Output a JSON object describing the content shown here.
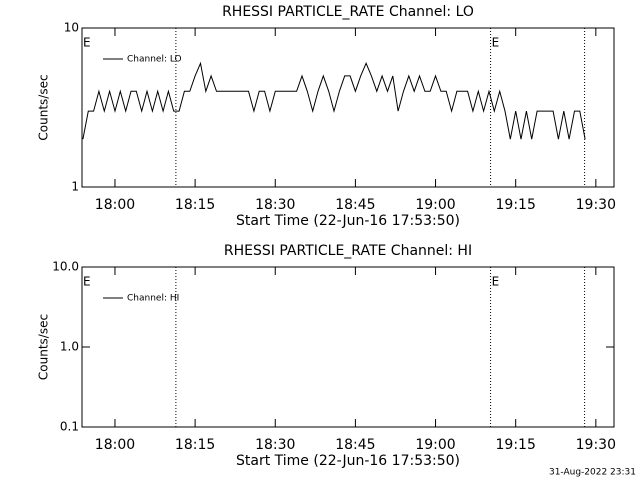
{
  "chart_data": [
    {
      "type": "line",
      "title": "RHESSI PARTICLE_RATE Channel: LO",
      "x_label": "Start Time (22-Jun-16 17:53:50)",
      "y_label": "Counts/sec",
      "y_log": true,
      "ylim": [
        1,
        10
      ],
      "yticks": [
        1,
        10
      ],
      "xlim": [
        1073.83,
        1173.4
      ],
      "xticks": [
        {
          "value": 1080,
          "label": "18:00"
        },
        {
          "value": 1095,
          "label": "18:15"
        },
        {
          "value": 1110,
          "label": "18:30"
        },
        {
          "value": 1125,
          "label": "18:45"
        },
        {
          "value": 1140,
          "label": "19:00"
        },
        {
          "value": 1155,
          "label": "19:15"
        },
        {
          "value": 1170,
          "label": "19:30"
        }
      ],
      "vlines": [
        1091.4,
        1150.3,
        1167.9
      ],
      "annotations": [
        {
          "x": 1073.83,
          "label": "E"
        },
        {
          "x": 1150.3,
          "label": "E"
        }
      ],
      "x": [
        1074,
        1075,
        1076,
        1077,
        1078,
        1079,
        1080,
        1081,
        1082,
        1083,
        1084,
        1085,
        1086,
        1087,
        1088,
        1089,
        1090,
        1091,
        1092,
        1093,
        1094,
        1095,
        1096,
        1097,
        1098,
        1099,
        1100,
        1101,
        1102,
        1103,
        1104,
        1105,
        1106,
        1107,
        1108,
        1109,
        1110,
        1111,
        1112,
        1113,
        1114,
        1115,
        1116,
        1117,
        1118,
        1119,
        1120,
        1121,
        1122,
        1123,
        1124,
        1125,
        1126,
        1127,
        1128,
        1129,
        1130,
        1131,
        1132,
        1133,
        1134,
        1135,
        1136,
        1137,
        1138,
        1139,
        1140,
        1141,
        1142,
        1143,
        1144,
        1145,
        1146,
        1147,
        1148,
        1149,
        1150,
        1151,
        1152,
        1153,
        1154,
        1155,
        1156,
        1157,
        1158,
        1159,
        1160,
        1161,
        1162,
        1163,
        1164,
        1165,
        1166,
        1167,
        1168
      ],
      "series": [
        {
          "name": "Channel: LO",
          "color": "#000000",
          "values": [
            2,
            3,
            3,
            4,
            3,
            4,
            3,
            4,
            3,
            4,
            4,
            3,
            4,
            3,
            4,
            3,
            4,
            3,
            3,
            4,
            4,
            5,
            6,
            4,
            5,
            4,
            4,
            4,
            4,
            4,
            4,
            4,
            3,
            4,
            4,
            3,
            4,
            4,
            4,
            4,
            4,
            5,
            4,
            3,
            4,
            5,
            4,
            3,
            4,
            5,
            5,
            4,
            5,
            6,
            5,
            4,
            5,
            4,
            5,
            3,
            4,
            5,
            4,
            5,
            4,
            4,
            5,
            4,
            4,
            3,
            4,
            4,
            4,
            3,
            4,
            3,
            4,
            3,
            4,
            3,
            2,
            3,
            2,
            3,
            2,
            3,
            3,
            3,
            3,
            2,
            3,
            2,
            3,
            3,
            2
          ]
        }
      ]
    },
    {
      "type": "line",
      "title": "RHESSI PARTICLE_RATE Channel: HI",
      "x_label": "Start Time (22-Jun-16 17:53:50)",
      "y_label": "Counts/sec",
      "y_log": true,
      "ylim": [
        0.1,
        10
      ],
      "yticks": [
        {
          "value": 0.1,
          "label": "0.1"
        },
        {
          "value": 1,
          "label": "1.0"
        },
        {
          "value": 10,
          "label": "10.0"
        }
      ],
      "xlim": [
        1073.83,
        1173.4
      ],
      "xticks": [
        {
          "value": 1080,
          "label": "18:00"
        },
        {
          "value": 1095,
          "label": "18:15"
        },
        {
          "value": 1110,
          "label": "18:30"
        },
        {
          "value": 1125,
          "label": "18:45"
        },
        {
          "value": 1140,
          "label": "19:00"
        },
        {
          "value": 1155,
          "label": "19:15"
        },
        {
          "value": 1170,
          "label": "19:30"
        }
      ],
      "vlines": [
        1091.4,
        1150.3,
        1167.9
      ],
      "annotations": [
        {
          "x": 1073.83,
          "label": "E"
        },
        {
          "x": 1150.3,
          "label": "E"
        }
      ],
      "x": [],
      "series": [
        {
          "name": "Channel: HI",
          "color": "#000000",
          "values": []
        }
      ]
    }
  ],
  "footer": "31-Aug-2022 23:31"
}
